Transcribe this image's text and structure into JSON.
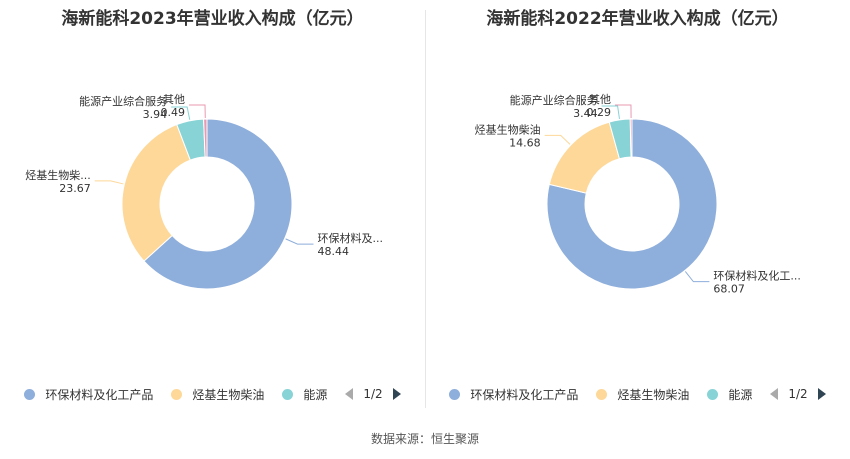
{
  "source_label": "数据来源：恒生聚源",
  "chart_data": [
    {
      "type": "pie",
      "title": "海新能科2023年营业收入构成（亿元）",
      "slices": [
        {
          "name": "环保材料及化工产品",
          "label_display": "环保材料及...",
          "value": 48.44,
          "value_label": "48.44",
          "color": "#8eaedb"
        },
        {
          "name": "烃基生物柴油",
          "label_display": "烃基生物柴...",
          "value": 23.67,
          "value_label": "23.67",
          "color": "#fdd899"
        },
        {
          "name": "能源产业综合服务",
          "label_display": "能源产业综合服务",
          "value": 3.94,
          "value_label": "3.94",
          "color": "#87d3d6"
        },
        {
          "name": "其他",
          "label_display": "其他",
          "value": 0.49,
          "value_label": "0.49",
          "color": "#e999b2"
        }
      ],
      "legend": {
        "items": [
          "环保材料及化工产品",
          "烃基生物柴油",
          "能源"
        ],
        "page": "1/2"
      }
    },
    {
      "type": "pie",
      "title": "海新能科2022年营业收入构成（亿元）",
      "slices": [
        {
          "name": "环保材料及化工产品",
          "label_display": "环保材料及化工...",
          "value": 68.07,
          "value_label": "68.07",
          "color": "#8eaedb"
        },
        {
          "name": "烃基生物柴油",
          "label_display": "烃基生物柴油",
          "value": 14.68,
          "value_label": "14.68",
          "color": "#fdd899"
        },
        {
          "name": "能源产业综合服务",
          "label_display": "能源产业综合服务",
          "value": 3.44,
          "value_label": "3.44",
          "color": "#87d3d6"
        },
        {
          "name": "其他",
          "label_display": "其他",
          "value": 0.29,
          "value_label": "0.29",
          "color": "#e999b2"
        }
      ],
      "legend": {
        "items": [
          "环保材料及化工产品",
          "烃基生物柴油",
          "能源"
        ],
        "page": "1/2"
      }
    }
  ]
}
